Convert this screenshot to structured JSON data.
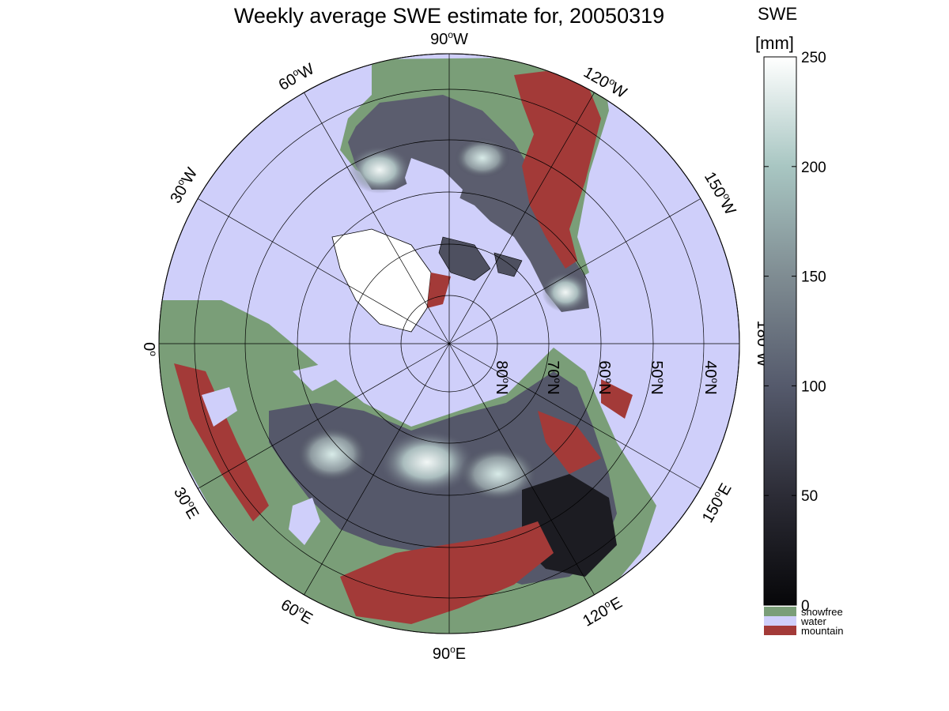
{
  "title": "Weekly average SWE estimate for, 20050319",
  "colorbar": {
    "label_line1": "SWE",
    "label_line2": "[mm]",
    "min": 0,
    "max": 250,
    "ticks": [
      "0",
      "50",
      "100",
      "150",
      "200",
      "250"
    ],
    "tick_values": [
      0,
      50,
      100,
      150,
      200,
      250
    ],
    "gradient_colors": [
      "#070709",
      "#2c2c36",
      "#555a6c",
      "#7f8c92",
      "#a8c6c2",
      "#ffffff"
    ]
  },
  "legend": [
    {
      "label": "snowfree",
      "color": "#7a9e78"
    },
    {
      "label": "water",
      "color": "#cfcffa"
    },
    {
      "label": "mountain",
      "color": "#a33a38"
    }
  ],
  "map": {
    "projection": "north polar stereographic",
    "ocean_color": "#cfcffa",
    "longitude_labels": [
      {
        "deg": "90",
        "hemi": "W"
      },
      {
        "deg": "120",
        "hemi": "W"
      },
      {
        "deg": "150",
        "hemi": "W"
      },
      {
        "deg": "180",
        "hemi": "W"
      },
      {
        "deg": "150",
        "hemi": "E"
      },
      {
        "deg": "120",
        "hemi": "E"
      },
      {
        "deg": "90",
        "hemi": "E"
      },
      {
        "deg": "60",
        "hemi": "E"
      },
      {
        "deg": "30",
        "hemi": "E"
      },
      {
        "deg": "0",
        "hemi": ""
      },
      {
        "deg": "30",
        "hemi": "W"
      },
      {
        "deg": "60",
        "hemi": "W"
      }
    ],
    "latitude_labels": [
      {
        "deg": "80",
        "hemi": "N"
      },
      {
        "deg": "70",
        "hemi": "N"
      },
      {
        "deg": "60",
        "hemi": "N"
      },
      {
        "deg": "50",
        "hemi": "N"
      },
      {
        "deg": "40",
        "hemi": "N"
      }
    ]
  }
}
